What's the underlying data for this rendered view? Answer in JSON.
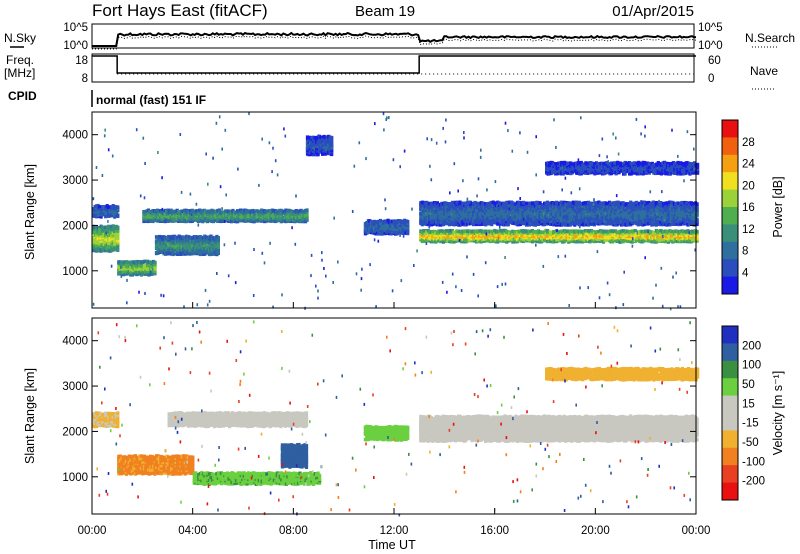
{
  "header": {
    "station": "Fort Hays East (fitACF)",
    "beam": "Beam 19",
    "date": "01/Apr/2015"
  },
  "noise_panel": {
    "left_label": "N.Sky",
    "right_label": "N.Search",
    "left_ticks": [
      "10^5",
      "10^0"
    ],
    "right_ticks": [
      "10^5",
      "10^0"
    ]
  },
  "freq_panel": {
    "left_label_line1": "Freq.",
    "left_label_line2": "[MHz]",
    "right_label": "Nave",
    "left_ticks": [
      "18",
      "8"
    ],
    "right_ticks": [
      "60",
      "0"
    ]
  },
  "cpid_panel": {
    "label": "CPID",
    "text": "normal (fast) 151 IF"
  },
  "colors": {
    "power_scale": [
      "#1a1ae6",
      "#2a4fbd",
      "#2e6f9e",
      "#3a8f7a",
      "#4fae4f",
      "#9bd23a",
      "#f0e020",
      "#f5a010",
      "#f06010",
      "#e81010"
    ],
    "velocity_scale": [
      "#1f2fbf",
      "#2f5fa0",
      "#3a8f40",
      "#6ad040",
      "#c8c8c0",
      "#c8c8c0",
      "#f0b030",
      "#f08020",
      "#e84020",
      "#e81010"
    ],
    "ground_gray": "#c0c0b8"
  },
  "chart_data": [
    {
      "type": "heatmap",
      "title": "Power",
      "xlabel": "Time UT",
      "ylabel": "Slant Range [km]",
      "x_ticks": [
        "00:00",
        "04:00",
        "08:00",
        "12:00",
        "16:00",
        "20:00",
        "00:00"
      ],
      "xlim": [
        0,
        24
      ],
      "ylim": [
        180,
        4500
      ],
      "y_ticks": [
        1000,
        2000,
        3000,
        4000
      ],
      "colorbar": {
        "label": "Power [dB]",
        "ticks": [
          4,
          8,
          12,
          16,
          20,
          24,
          28
        ],
        "range": [
          0,
          32
        ]
      },
      "echo_bands": [
        {
          "t": [
            0.0,
            1.0
          ],
          "r_center": 1750,
          "width": 550,
          "power": 20
        },
        {
          "t": [
            0.0,
            1.0
          ],
          "r_center": 2350,
          "width": 250,
          "power": 8
        },
        {
          "t": [
            1.0,
            2.5
          ],
          "r_center": 1100,
          "width": 300,
          "power": 18
        },
        {
          "t": [
            2.5,
            5.0
          ],
          "r_center": 1600,
          "width": 400,
          "power": 12
        },
        {
          "t": [
            2.0,
            8.5
          ],
          "r_center": 2250,
          "width": 250,
          "power": 14
        },
        {
          "t": [
            8.5,
            9.5
          ],
          "r_center": 3800,
          "width": 400,
          "power": 6
        },
        {
          "t": [
            10.8,
            12.5
          ],
          "r_center": 2000,
          "width": 300,
          "power": 8
        },
        {
          "t": [
            13.0,
            24.0
          ],
          "r_center": 1800,
          "width": 250,
          "power": 24
        },
        {
          "t": [
            13.0,
            24.0
          ],
          "r_center": 2300,
          "width": 500,
          "power": 8
        },
        {
          "t": [
            18.0,
            24.0
          ],
          "r_center": 3300,
          "width": 250,
          "power": 5
        }
      ]
    },
    {
      "type": "heatmap",
      "title": "Velocity",
      "xlabel": "Time UT",
      "ylabel": "Slant Range [km]",
      "x_ticks": [
        "00:00",
        "04:00",
        "08:00",
        "12:00",
        "16:00",
        "20:00",
        "00:00"
      ],
      "xlim": [
        0,
        24
      ],
      "ylim": [
        180,
        4500
      ],
      "y_ticks": [
        1000,
        2000,
        3000,
        4000
      ],
      "colorbar": {
        "label": "Velocity [m s⁻¹]",
        "ticks": [
          -200,
          -100,
          -50,
          -15,
          15,
          50,
          100,
          200
        ],
        "range": [
          -250,
          250
        ]
      },
      "echo_bands": [
        {
          "t": [
            0.0,
            1.0
          ],
          "r_center": 2300,
          "width": 300,
          "velocity": -20
        },
        {
          "t": [
            1.0,
            4.0
          ],
          "r_center": 1300,
          "width": 400,
          "velocity": -60
        },
        {
          "t": [
            3.0,
            8.5
          ],
          "r_center": 2300,
          "width": 300,
          "velocity": 0
        },
        {
          "t": [
            4.0,
            9.0
          ],
          "r_center": 1000,
          "width": 250,
          "velocity": 40
        },
        {
          "t": [
            7.5,
            8.5
          ],
          "r_center": 1500,
          "width": 500,
          "velocity": 150
        },
        {
          "t": [
            10.8,
            12.5
          ],
          "r_center": 2000,
          "width": 300,
          "velocity": 30
        },
        {
          "t": [
            13.0,
            24.0
          ],
          "r_center": 2100,
          "width": 550,
          "velocity": 0
        },
        {
          "t": [
            18.0,
            24.0
          ],
          "r_center": 3300,
          "width": 250,
          "velocity": -30
        }
      ]
    }
  ]
}
